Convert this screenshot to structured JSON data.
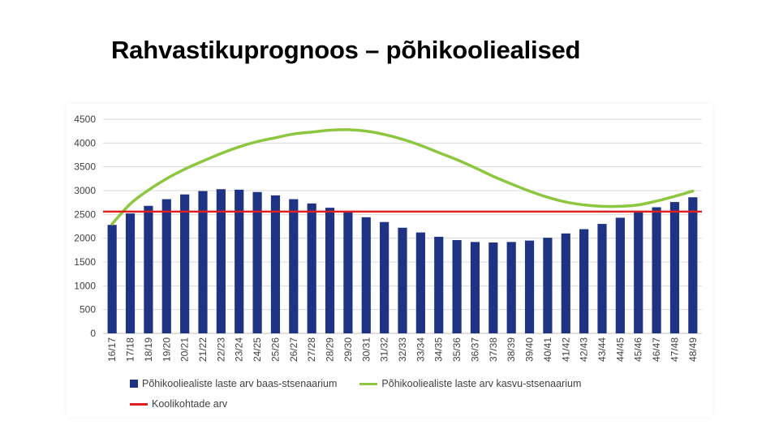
{
  "title": "Rahvastikuprognoos – põhikooliealised",
  "chart_data": {
    "type": "bar",
    "categories": [
      "16/17",
      "17/18",
      "18/19",
      "19/20",
      "20/21",
      "21/22",
      "22/23",
      "23/24",
      "24/25",
      "25/26",
      "26/27",
      "27/28",
      "28/29",
      "29/30",
      "30/31",
      "31/32",
      "32/33",
      "33/34",
      "34/35",
      "35/36",
      "36/37",
      "37/38",
      "38/39",
      "39/40",
      "40/41",
      "41/42",
      "42/43",
      "43/44",
      "44/45",
      "45/46",
      "46/47",
      "47/48",
      "48/49"
    ],
    "ylim": [
      0,
      4500
    ],
    "yticks": [
      0,
      500,
      1000,
      1500,
      2000,
      2500,
      3000,
      3500,
      4000,
      4500
    ],
    "grid": true,
    "legend_position": "bottom",
    "series": [
      {
        "name": "Põhikooliealiste laste arv  baas-stsenaarium",
        "kind": "bar",
        "color": "#1f3385",
        "values": [
          2280,
          2520,
          2680,
          2820,
          2920,
          2990,
          3030,
          3020,
          2970,
          2900,
          2820,
          2730,
          2640,
          2550,
          2440,
          2340,
          2220,
          2120,
          2030,
          1960,
          1920,
          1910,
          1920,
          1950,
          2010,
          2100,
          2190,
          2300,
          2430,
          2550,
          2650,
          2760,
          2860
        ]
      },
      {
        "name": "Põhikooliealiste laste arv kasvu-stsenaarium",
        "kind": "line",
        "color": "#8dc63f",
        "values": [
          2300,
          2720,
          3010,
          3250,
          3450,
          3620,
          3780,
          3920,
          4030,
          4110,
          4190,
          4230,
          4270,
          4280,
          4250,
          4180,
          4080,
          3950,
          3800,
          3650,
          3480,
          3300,
          3140,
          2990,
          2860,
          2760,
          2700,
          2670,
          2670,
          2700,
          2780,
          2880,
          2990
        ]
      },
      {
        "name": "Koolikohtade arv",
        "kind": "line",
        "color": "#e02020",
        "values": [
          2560,
          2560,
          2560,
          2560,
          2560,
          2560,
          2560,
          2560,
          2560,
          2560,
          2560,
          2560,
          2560,
          2560,
          2560,
          2560,
          2560,
          2560,
          2560,
          2560,
          2560,
          2560,
          2560,
          2560,
          2560,
          2560,
          2560,
          2560,
          2560,
          2560,
          2560,
          2560,
          2560
        ]
      }
    ]
  }
}
